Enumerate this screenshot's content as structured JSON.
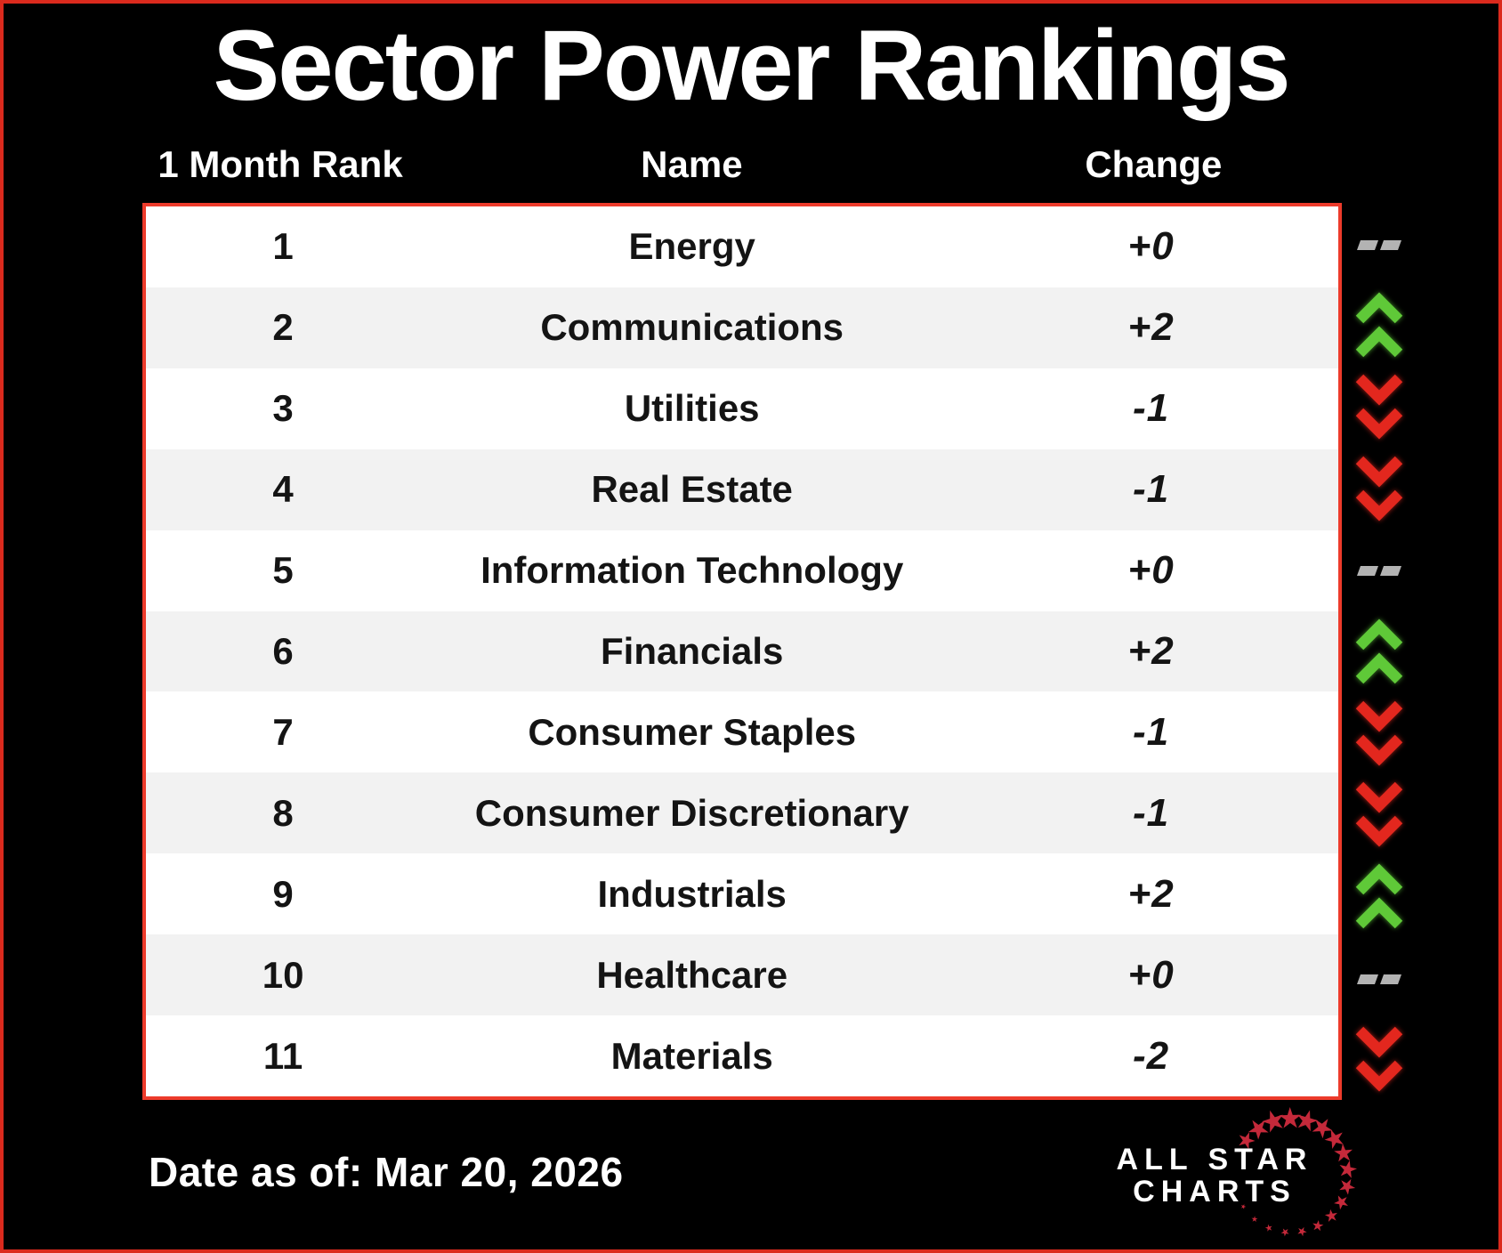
{
  "title": "Sector Power Rankings",
  "table": {
    "headers": {
      "rank": "1 Month Rank",
      "name": "Name",
      "change": "Change"
    },
    "rows": [
      {
        "rank": "1",
        "name": "Energy",
        "change": "+0",
        "direction": "flat"
      },
      {
        "rank": "2",
        "name": "Communications",
        "change": "+2",
        "direction": "up"
      },
      {
        "rank": "3",
        "name": "Utilities",
        "change": "-1",
        "direction": "down"
      },
      {
        "rank": "4",
        "name": "Real Estate",
        "change": "-1",
        "direction": "down"
      },
      {
        "rank": "5",
        "name": "Information Technology",
        "change": "+0",
        "direction": "flat"
      },
      {
        "rank": "6",
        "name": "Financials",
        "change": "+2",
        "direction": "up"
      },
      {
        "rank": "7",
        "name": "Consumer Staples",
        "change": "-1",
        "direction": "down"
      },
      {
        "rank": "8",
        "name": "Consumer Discretionary",
        "change": "-1",
        "direction": "down"
      },
      {
        "rank": "9",
        "name": "Industrials",
        "change": "+2",
        "direction": "up"
      },
      {
        "rank": "10",
        "name": "Healthcare",
        "change": "+0",
        "direction": "flat"
      },
      {
        "rank": "11",
        "name": "Materials",
        "change": "-2",
        "direction": "down"
      }
    ]
  },
  "footer": {
    "date_label": "Date as of: Mar 20, 2026"
  },
  "logo": {
    "line1": "ALL STAR",
    "line2": "CHARTS"
  },
  "icons": {
    "up": "double-chevron-up",
    "down": "double-chevron-down",
    "flat": "double-dash"
  },
  "colors": {
    "background": "#000000",
    "outer_border_red": "#DB2A1D",
    "table_border_red": "#ED3B2B",
    "row_alt_gray": "#F2F2F2",
    "up_green": "#5FC938",
    "down_red": "#E3271E",
    "flat_gray": "#B3B3B3",
    "logo_star_red": "#C4293A",
    "text_dark": "#141414",
    "text_white": "#FFFFFF"
  }
}
